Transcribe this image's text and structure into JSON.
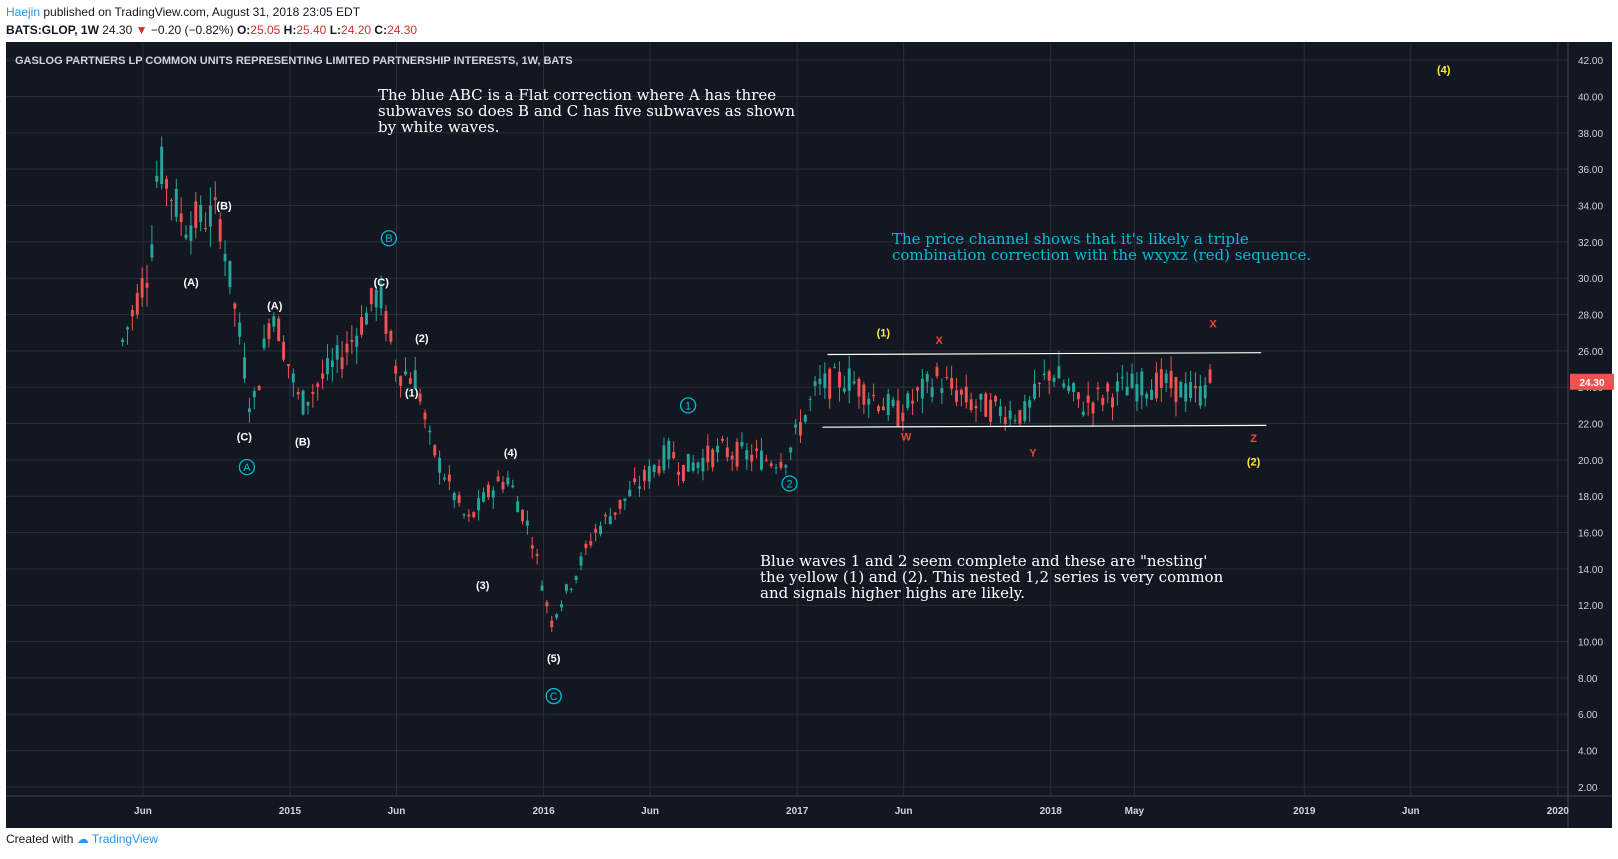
{
  "header": {
    "author": "Haejin",
    "published": "published on TradingView.com, August 31, 2018 23:05 EDT",
    "symbol": "BATS:GLOP, 1W",
    "last": "24.30",
    "change": "−0.20 (−0.82%)",
    "o_label": "O:",
    "o_value": "25.05",
    "h_label": "H:",
    "h_value": "25.40",
    "l_label": "L:",
    "l_value": "24.20",
    "c_label": "C:",
    "c_value": "24.30"
  },
  "footer": {
    "created_with": "Created with",
    "brand": "TradingView"
  },
  "colors": {
    "background": "#131722",
    "up": "#26a69a",
    "down": "#ef5350",
    "cyan": "#00bcd4",
    "yellow": "#ffeb3b",
    "red_label": "#f44336",
    "text": "#d1d4dc",
    "price_tag": "#ef5350"
  },
  "chart_data": {
    "type": "candlestick",
    "title": "GASLOG PARTNERS LP COMMON UNITS REPRESENTING LIMITED PARTNERSHIP INTERESTS, 1W, BATS",
    "y_ticks": [
      "2.00",
      "4.00",
      "6.00",
      "8.00",
      "10.00",
      "12.00",
      "14.00",
      "16.00",
      "18.00",
      "20.00",
      "22.00",
      "24.00",
      "26.00",
      "28.00",
      "30.00",
      "32.00",
      "34.00",
      "36.00",
      "38.00",
      "40.00",
      "42.00"
    ],
    "ylim": [
      1.5,
      43
    ],
    "x_ticks": [
      {
        "label": "Jun",
        "t": 2014.42
      },
      {
        "label": "2015",
        "t": 2015.0
      },
      {
        "label": "Jun",
        "t": 2015.42
      },
      {
        "label": "2016",
        "t": 2016.0
      },
      {
        "label": "Jun",
        "t": 2016.42
      },
      {
        "label": "2017",
        "t": 2017.0
      },
      {
        "label": "Jun",
        "t": 2017.42
      },
      {
        "label": "2018",
        "t": 2018.0
      },
      {
        "label": "May",
        "t": 2018.33
      },
      {
        "label": "2019",
        "t": 2019.0
      },
      {
        "label": "Jun",
        "t": 2019.42
      },
      {
        "label": "2020",
        "t": 2020.0
      }
    ],
    "xlim": [
      2013.88,
      2020.04
    ],
    "last_price": "24.30",
    "anchors": [
      [
        2014.34,
        26.5
      ],
      [
        2014.45,
        31
      ],
      [
        2014.48,
        36.5
      ],
      [
        2014.58,
        33
      ],
      [
        2014.72,
        33.5
      ],
      [
        2014.8,
        27
      ],
      [
        2014.85,
        22.5
      ],
      [
        2014.93,
        28.5
      ],
      [
        2015.04,
        23
      ],
      [
        2015.22,
        26
      ],
      [
        2015.3,
        28
      ],
      [
        2015.35,
        29.3
      ],
      [
        2015.42,
        25
      ],
      [
        2015.5,
        24.5
      ],
      [
        2015.55,
        21
      ],
      [
        2015.7,
        16.5
      ],
      [
        2015.8,
        18.5
      ],
      [
        2015.86,
        19
      ],
      [
        2015.95,
        16
      ],
      [
        2016.03,
        11
      ],
      [
        2016.06,
        12
      ],
      [
        2016.12,
        13.5
      ],
      [
        2016.2,
        16
      ],
      [
        2016.3,
        17.5
      ],
      [
        2016.42,
        19.3
      ],
      [
        2016.5,
        20.5
      ],
      [
        2016.55,
        19.5
      ],
      [
        2016.7,
        20.5
      ],
      [
        2016.9,
        20
      ],
      [
        2016.96,
        20.2
      ],
      [
        2017.08,
        24
      ],
      [
        2017.2,
        24.5
      ],
      [
        2017.4,
        22.5
      ],
      [
        2017.55,
        24.5
      ],
      [
        2017.7,
        23
      ],
      [
        2017.9,
        22.5
      ],
      [
        2018.0,
        25
      ],
      [
        2018.12,
        23
      ],
      [
        2018.3,
        24
      ],
      [
        2018.45,
        24.2
      ],
      [
        2018.58,
        23.5
      ],
      [
        2018.64,
        24.5
      ]
    ],
    "channel_upper": [
      [
        2017.12,
        25.8
      ],
      [
        2018.83,
        25.9
      ]
    ],
    "channel_lower": [
      [
        2017.1,
        21.8
      ],
      [
        2018.85,
        21.9
      ]
    ],
    "labels_white": [
      {
        "text": "(B)",
        "t": 2014.74,
        "y": 34.0
      },
      {
        "text": "(A)",
        "t": 2014.61,
        "y": 29.8
      },
      {
        "text": "(A)",
        "t": 2014.94,
        "y": 28.5
      },
      {
        "text": "(C)",
        "t": 2014.82,
        "y": 21.3
      },
      {
        "text": "(B)",
        "t": 2015.05,
        "y": 21.0
      },
      {
        "text": "(C)",
        "t": 2015.36,
        "y": 29.8
      },
      {
        "text": "(2)",
        "t": 2015.52,
        "y": 26.7
      },
      {
        "text": "(1)",
        "t": 2015.48,
        "y": 23.7
      },
      {
        "text": "(4)",
        "t": 2015.87,
        "y": 20.4
      },
      {
        "text": "(3)",
        "t": 2015.76,
        "y": 13.1
      },
      {
        "text": "(5)",
        "t": 2016.04,
        "y": 9.1
      }
    ],
    "labels_cyan": [
      {
        "text": "A",
        "t": 2014.83,
        "y": 19.6
      },
      {
        "text": "B",
        "t": 2015.39,
        "y": 32.2
      },
      {
        "text": "C",
        "t": 2016.04,
        "y": 7.0
      },
      {
        "text": "1",
        "t": 2016.57,
        "y": 23.0
      },
      {
        "text": "2",
        "t": 2016.97,
        "y": 18.7
      }
    ],
    "labels_yellow": [
      {
        "text": "(1)",
        "t": 2017.34,
        "y": 27.0
      },
      {
        "text": "(2)",
        "t": 2018.8,
        "y": 19.9
      },
      {
        "text": "(4)",
        "t": 2019.55,
        "y": 41.5
      }
    ],
    "labels_red": [
      {
        "text": "X",
        "t": 2017.56,
        "y": 26.6
      },
      {
        "text": "W",
        "t": 2017.43,
        "y": 21.3
      },
      {
        "text": "Y",
        "t": 2017.93,
        "y": 20.4
      },
      {
        "text": "X",
        "t": 2018.64,
        "y": 27.5
      },
      {
        "text": "Z",
        "t": 2018.8,
        "y": 21.2
      }
    ],
    "annotation_abc": [
      "The blue ABC is a Flat correction where A has three",
      "subwaves so does B and C has five subwaves as shown",
      "by white waves."
    ],
    "annotation_channel": [
      "The price channel shows that it's likely a triple",
      "combination correction with the wxyxz (red) sequence."
    ],
    "annotation_nesting": [
      "Blue waves 1 and 2 seem complete and these are \"nesting'",
      "the yellow (1) and (2). This nested 1,2 series is very common",
      "and signals higher highs are likely."
    ]
  }
}
